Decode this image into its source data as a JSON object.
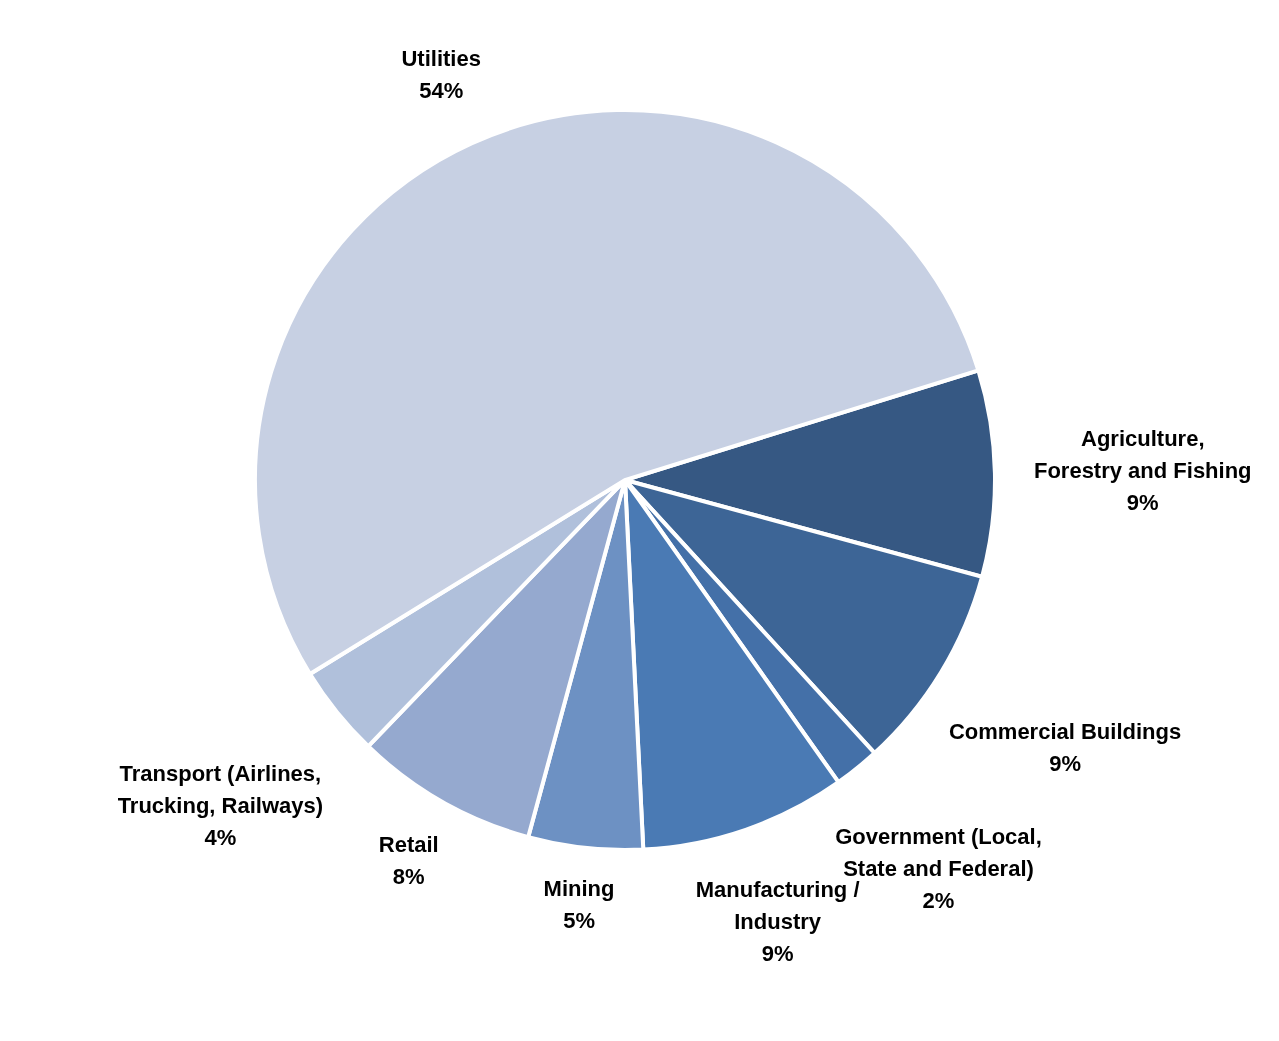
{
  "chart_data": {
    "type": "pie",
    "categories": [
      "Agriculture, Forestry and Fishing",
      "Commercial Buildings",
      "Government (Local, State and Federal)",
      "Manufacturing / Industry",
      "Mining",
      "Retail",
      "Transport (Airlines, Trucking, Railways)",
      "Utilities"
    ],
    "values": [
      9,
      9,
      2,
      9,
      5,
      8,
      4,
      54
    ],
    "value_labels": [
      "9%",
      "9%",
      "2%",
      "9%",
      "5%",
      "8%",
      "4%",
      "54%"
    ],
    "colors": [
      "#365883",
      "#3d6596",
      "#4470a8",
      "#4a7ab4",
      "#6d91c3",
      "#95a9cf",
      "#b0c0db",
      "#c7d0e3"
    ]
  }
}
